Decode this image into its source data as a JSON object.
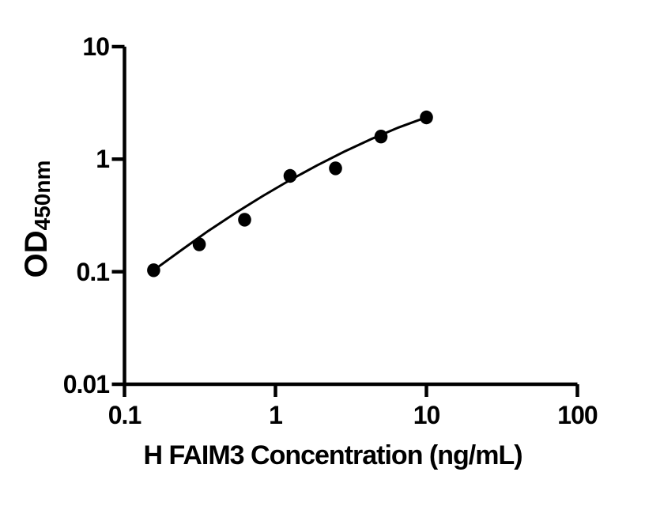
{
  "figure": {
    "background": "#ffffff",
    "ink": "#000000"
  },
  "chart_data": {
    "type": "scatter",
    "title": "",
    "xlabel": "H FAIM3 Concentration (ng/mL)",
    "ylabel_main": "OD",
    "ylabel_sub": "450nm",
    "x_scale": "log",
    "y_scale": "log",
    "xlim": [
      0.1,
      100
    ],
    "ylim": [
      0.01,
      10
    ],
    "x_ticks": [
      0.1,
      1,
      10,
      100
    ],
    "x_tick_labels": [
      "0.1",
      "1",
      "10",
      "100"
    ],
    "y_ticks": [
      10,
      1,
      0.1,
      0.01
    ],
    "y_tick_labels": [
      "10",
      "1",
      "0.1",
      "0.01"
    ],
    "grid": false,
    "legend": false,
    "series": [
      {
        "marker": "circle",
        "color": "#000000",
        "x": [
          0.156,
          0.313,
          0.625,
          1.25,
          2.5,
          5,
          10
        ],
        "y": [
          0.103,
          0.175,
          0.29,
          0.71,
          0.83,
          1.59,
          2.35
        ]
      }
    ],
    "fit_curve": {
      "x": [
        0.156,
        0.237,
        0.358,
        0.542,
        0.821,
        1.242,
        1.881,
        2.847,
        4.31,
        6.53,
        10
      ],
      "y": [
        0.103,
        0.155,
        0.23,
        0.332,
        0.469,
        0.65,
        0.879,
        1.165,
        1.509,
        1.912,
        2.36
      ]
    }
  }
}
